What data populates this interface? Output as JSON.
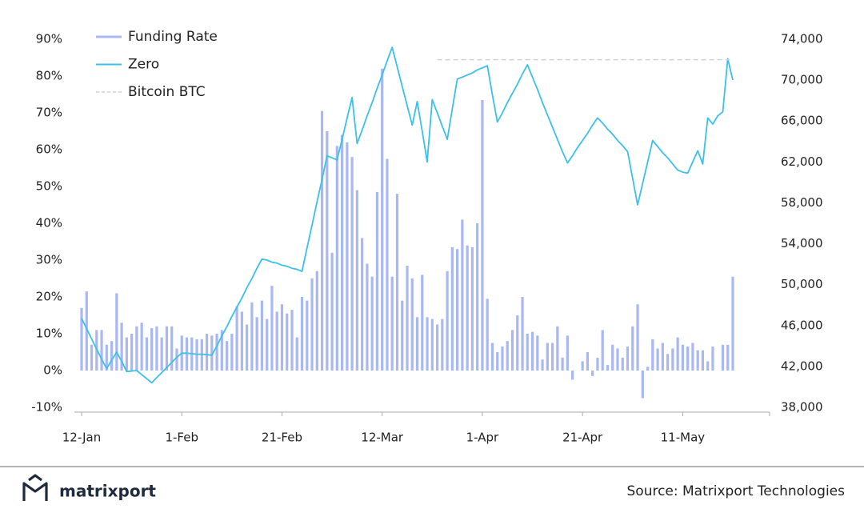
{
  "chart_data": {
    "type": "combo",
    "categories": [
      "12-Jan",
      null,
      null,
      null,
      null,
      null,
      null,
      null,
      null,
      null,
      null,
      null,
      null,
      null,
      null,
      null,
      null,
      null,
      null,
      null,
      "1-Feb",
      null,
      null,
      null,
      null,
      null,
      null,
      null,
      null,
      null,
      null,
      null,
      null,
      null,
      null,
      null,
      null,
      null,
      null,
      null,
      "21-Feb",
      null,
      null,
      null,
      null,
      null,
      null,
      null,
      null,
      null,
      null,
      null,
      null,
      null,
      null,
      null,
      null,
      null,
      null,
      null,
      "12-Mar",
      null,
      null,
      null,
      null,
      null,
      null,
      null,
      null,
      null,
      null,
      null,
      null,
      null,
      null,
      null,
      null,
      null,
      null,
      null,
      "1-Apr",
      null,
      null,
      null,
      null,
      null,
      null,
      null,
      null,
      null,
      null,
      null,
      null,
      null,
      null,
      null,
      null,
      null,
      null,
      null,
      "21-Apr",
      null,
      null,
      null,
      null,
      null,
      null,
      null,
      null,
      null,
      null,
      null,
      null,
      null,
      null,
      null,
      null,
      null,
      null,
      null,
      "11-May",
      null,
      null,
      null,
      null,
      null,
      null,
      null,
      null,
      null,
      null
    ],
    "series": [
      {
        "name": "Funding Rate",
        "type": "bar",
        "color": "#a9b7f2",
        "values": [
          17,
          21.5,
          7,
          11,
          11,
          7,
          8,
          21,
          13,
          9,
          10,
          12,
          13,
          9,
          11.5,
          12,
          9,
          12,
          12,
          6,
          9.5,
          9,
          9,
          8.5,
          8.5,
          10,
          9.5,
          10,
          11,
          8,
          10,
          17.5,
          16,
          12.5,
          18.5,
          14.5,
          19,
          14,
          23,
          16,
          18,
          15.5,
          16.5,
          9,
          20,
          19,
          25,
          27,
          70.5,
          65,
          32,
          61,
          64,
          62,
          58,
          49,
          36,
          29,
          25.5,
          48.5,
          82,
          57.5,
          25.5,
          48,
          19,
          28.5,
          25,
          14.5,
          26,
          14.5,
          14,
          12.5,
          14,
          27,
          33.5,
          33,
          41,
          34,
          33.5,
          40,
          73.5,
          19.5,
          7.5,
          5,
          6.5,
          8,
          11,
          15,
          20,
          10,
          10.5,
          9.5,
          3,
          7.5,
          7.5,
          12,
          3.5,
          9.5,
          -2.5,
          0,
          2.5,
          5,
          -1.5,
          3.5,
          11,
          1.5,
          7,
          6,
          3.5,
          6.5,
          12,
          18,
          -7.5,
          1,
          8.5,
          6,
          7.5,
          4.5,
          6,
          9,
          7,
          6.5,
          7.5,
          5.5,
          5.5,
          2.5,
          6.5,
          0,
          7,
          7,
          25.5
        ]
      },
      {
        "name": "Zero",
        "type": "line",
        "axis": "y2",
        "color": "#3cc0e8",
        "values": [
          46700,
          45700,
          44700,
          43700,
          42700,
          41800,
          42600,
          43400,
          42500,
          41500,
          41550,
          41600,
          41200,
          40800,
          40400,
          40900,
          41400,
          41900,
          42400,
          42900,
          43300,
          43300,
          43250,
          43200,
          43200,
          43150,
          43100,
          44000,
          45000,
          45900,
          46900,
          47800,
          48700,
          49700,
          50600,
          51600,
          52500,
          52400,
          52200,
          52100,
          51900,
          51800,
          51600,
          51500,
          51300,
          53600,
          55800,
          58100,
          60300,
          62600,
          62400,
          62200,
          64200,
          66300,
          68300,
          63800,
          65100,
          66500,
          67800,
          69200,
          70500,
          71900,
          73200,
          71300,
          69400,
          67500,
          65600,
          67900,
          65000,
          62000,
          68100,
          66800,
          65500,
          64200,
          67200,
          70100,
          70300,
          70500,
          70700,
          71000,
          71200,
          71400,
          68600,
          65900,
          66800,
          67800,
          68700,
          69600,
          70600,
          71500,
          70300,
          69100,
          67800,
          66600,
          65400,
          64200,
          63000,
          61900,
          62600,
          63400,
          64100,
          64800,
          65600,
          66300,
          65800,
          65200,
          64700,
          64100,
          63600,
          63000,
          60400,
          57800,
          59900,
          62000,
          64100,
          63500,
          62900,
          62400,
          61800,
          61200,
          61000,
          60900,
          62000,
          63100,
          61800,
          66300,
          65700,
          66500,
          66900,
          72100,
          70000
        ]
      },
      {
        "name": "Bitcoin BTC",
        "type": "dashed",
        "axis": "y2",
        "color": "#cfd2d8",
        "values": [
          null,
          null,
          null,
          null,
          null,
          null,
          null,
          null,
          null,
          null,
          null,
          null,
          null,
          null,
          null,
          null,
          null,
          null,
          null,
          null,
          null,
          null,
          null,
          null,
          null,
          null,
          null,
          null,
          null,
          null,
          null,
          null,
          null,
          null,
          null,
          null,
          null,
          null,
          null,
          null,
          null,
          null,
          null,
          null,
          null,
          null,
          null,
          null,
          null,
          null,
          null,
          null,
          null,
          null,
          null,
          null,
          null,
          null,
          null,
          null,
          null,
          null,
          null,
          null,
          null,
          null,
          null,
          null,
          null,
          null,
          null,
          72000,
          72000,
          72000,
          72000,
          72000,
          72000,
          72000,
          72000,
          72000,
          72000,
          72000,
          72000,
          72000,
          72000,
          72000,
          72000,
          72000,
          72000,
          72000,
          72000,
          72000,
          72000,
          72000,
          72000,
          72000,
          72000,
          72000,
          72000,
          72000,
          72000,
          72000,
          72000,
          72000,
          72000,
          72000,
          72000,
          72000,
          72000,
          72000,
          72000,
          72000,
          72000,
          72000,
          72000,
          72000,
          72000,
          72000,
          72000,
          72000,
          72000,
          72000,
          72000,
          72000,
          72000,
          72000,
          72000,
          72000,
          72000,
          72000,
          72000
        ]
      }
    ],
    "ylim": [
      -10,
      90
    ],
    "yticks": [
      {
        "value": -10,
        "label": "-10%"
      },
      {
        "value": 0,
        "label": "0%"
      },
      {
        "value": 10,
        "label": "10%"
      },
      {
        "value": 20,
        "label": "20%"
      },
      {
        "value": 30,
        "label": "30%"
      },
      {
        "value": 40,
        "label": "40%"
      },
      {
        "value": 50,
        "label": "50%"
      },
      {
        "value": 60,
        "label": "60%"
      },
      {
        "value": 70,
        "label": "70%"
      },
      {
        "value": 80,
        "label": "80%"
      },
      {
        "value": 90,
        "label": "90%"
      }
    ],
    "y2lim": [
      38000,
      74000
    ],
    "y2ticks": [
      {
        "value": 38000,
        "label": "38,000"
      },
      {
        "value": 42000,
        "label": "42,000"
      },
      {
        "value": 46000,
        "label": "46,000"
      },
      {
        "value": 50000,
        "label": "50,000"
      },
      {
        "value": 54000,
        "label": "54,000"
      },
      {
        "value": 58000,
        "label": "58,000"
      },
      {
        "value": 62000,
        "label": "62,000"
      },
      {
        "value": 66000,
        "label": "66,000"
      },
      {
        "value": 70000,
        "label": "70,000"
      },
      {
        "value": 74000,
        "label": "74,000"
      }
    ],
    "legend": "top-left"
  },
  "footer": {
    "logo": "matrixport",
    "source": "Source: Matrixport Technologies"
  }
}
